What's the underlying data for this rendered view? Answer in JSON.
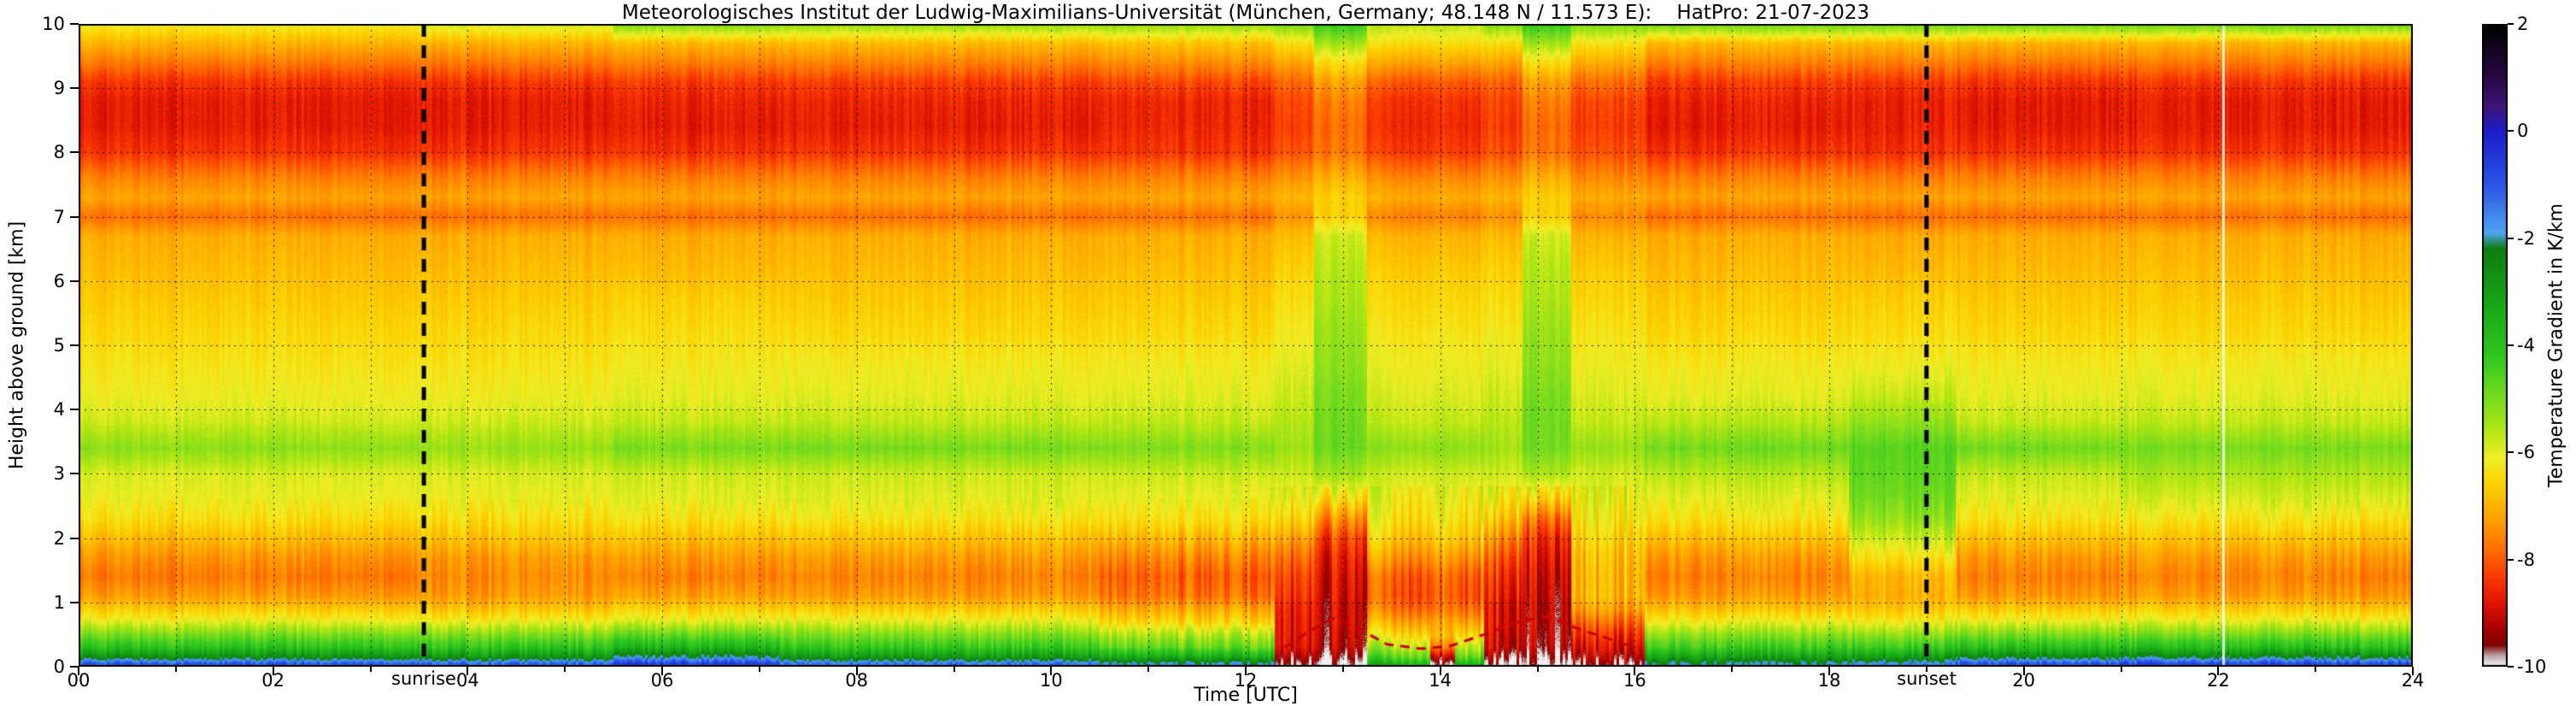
{
  "chart_data": {
    "type": "heatmap",
    "title": "Meteorologisches Institut der Ludwig-Maximilians-Universität (München, Germany; 48.148 N / 11.573 E):    HatPro: 21-07-2023",
    "xlabel": "Time [UTC]",
    "ylabel": "Height above ground [km]",
    "xlim": [
      0,
      24
    ],
    "ylim": [
      0,
      10
    ],
    "x_unit": "hours UTC",
    "y_unit": "km",
    "value_unit": "K/km",
    "grid": "dotted",
    "x_ticks": [
      "00",
      "02",
      "04",
      "06",
      "08",
      "10",
      "12",
      "14",
      "16",
      "18",
      "20",
      "22",
      "24"
    ],
    "y_ticks": [
      "0",
      "1",
      "2",
      "3",
      "4",
      "5",
      "6",
      "7",
      "8",
      "9",
      "10"
    ],
    "colorbar": {
      "label": "Temperature Gradient in K/km",
      "ticks": [
        "2",
        "0",
        "-2",
        "-4",
        "-6",
        "-8",
        "-10"
      ],
      "vmax": 2,
      "vmin": -10,
      "stops": [
        {
          "v": 2.0,
          "c": "#000000"
        },
        {
          "v": 1.1,
          "c": "#24073c"
        },
        {
          "v": 0.45,
          "c": "#3f1478"
        },
        {
          "v": 0.0,
          "c": "#1c1cc8"
        },
        {
          "v": -1.0,
          "c": "#2a55e6"
        },
        {
          "v": -1.9,
          "c": "#4fa3f0"
        },
        {
          "v": -2.2,
          "c": "#0e7d0e"
        },
        {
          "v": -3.2,
          "c": "#17a517"
        },
        {
          "v": -4.2,
          "c": "#2fc81e"
        },
        {
          "v": -5.0,
          "c": "#78dc1e"
        },
        {
          "v": -5.6,
          "c": "#b4e614"
        },
        {
          "v": -6.1,
          "c": "#f0ee28"
        },
        {
          "v": -6.6,
          "c": "#fcd200"
        },
        {
          "v": -7.2,
          "c": "#ffa500"
        },
        {
          "v": -7.8,
          "c": "#ff7000"
        },
        {
          "v": -8.3,
          "c": "#fa3c00"
        },
        {
          "v": -8.8,
          "c": "#e01400"
        },
        {
          "v": -9.3,
          "c": "#a80000"
        },
        {
          "v": -9.6,
          "c": "#800404"
        },
        {
          "v": -9.78,
          "c": "#b89898"
        },
        {
          "v": -9.9,
          "c": "#dcd4d4"
        },
        {
          "v": -10.0,
          "c": "#f0f0f0"
        }
      ]
    },
    "annotations": {
      "sunrise": {
        "t": 3.55,
        "label": "sunrise"
      },
      "sunset": {
        "t": 19.0,
        "label": "sunset"
      }
    },
    "heights": [
      0.05,
      0.15,
      0.3,
      0.5,
      0.7,
      0.9,
      1.1,
      1.4,
      1.7,
      2.0,
      2.3,
      2.6,
      3.0,
      3.4,
      3.8,
      4.2,
      4.7,
      5.2,
      5.7,
      6.2,
      6.7,
      7.0,
      7.3,
      7.6,
      8.0,
      8.4,
      8.8,
      9.1,
      9.4,
      9.7,
      10.0
    ],
    "time_slices": [
      {
        "name": "night1",
        "t": [
          0,
          3.5
        ],
        "values": [
          -1.0,
          -2.6,
          -4.0,
          -5.0,
          -6.0,
          -6.7,
          -7.3,
          -7.7,
          -7.4,
          -6.9,
          -6.4,
          -6.1,
          -5.9,
          -5.2,
          -5.8,
          -6.1,
          -6.3,
          -6.5,
          -6.7,
          -6.9,
          -7.1,
          -7.8,
          -7.2,
          -7.6,
          -8.4,
          -8.7,
          -8.7,
          -8.4,
          -7.7,
          -7.0,
          -6.1
        ]
      },
      {
        "name": "dawn",
        "t": [
          3.5,
          5.5
        ],
        "values": [
          -1.2,
          -2.8,
          -4.1,
          -5.1,
          -6.1,
          -6.8,
          -7.3,
          -7.5,
          -7.3,
          -6.8,
          -6.4,
          -6.1,
          -5.9,
          -5.3,
          -5.8,
          -6.1,
          -6.3,
          -6.5,
          -6.7,
          -6.9,
          -7.1,
          -7.8,
          -7.2,
          -7.6,
          -8.4,
          -8.7,
          -8.7,
          -8.4,
          -7.7,
          -7.0,
          -5.8
        ]
      },
      {
        "name": "morning-blue-ground",
        "t": [
          5.5,
          7.2
        ],
        "values": [
          -0.6,
          -2.0,
          -3.6,
          -4.8,
          -5.9,
          -6.6,
          -7.2,
          -7.6,
          -7.3,
          -6.8,
          -6.3,
          -6.0,
          -5.8,
          -5.0,
          -5.7,
          -6.0,
          -6.2,
          -6.4,
          -6.6,
          -6.9,
          -7.1,
          -7.8,
          -7.2,
          -7.6,
          -8.4,
          -8.7,
          -8.6,
          -8.3,
          -7.6,
          -6.9,
          -5.0
        ]
      },
      {
        "name": "morning",
        "t": [
          7.2,
          10.5
        ],
        "values": [
          -1.4,
          -2.9,
          -4.2,
          -5.1,
          -6.0,
          -6.7,
          -7.3,
          -7.6,
          -7.3,
          -6.8,
          -6.3,
          -6.0,
          -5.8,
          -5.0,
          -5.7,
          -6.0,
          -6.2,
          -6.5,
          -6.7,
          -6.9,
          -7.1,
          -7.8,
          -7.2,
          -7.6,
          -8.4,
          -8.7,
          -8.6,
          -8.3,
          -7.6,
          -6.9,
          -5.2
        ]
      },
      {
        "name": "pre-convective",
        "t": [
          10.5,
          12.3
        ],
        "values": [
          -2.0,
          -3.4,
          -4.8,
          -5.6,
          -6.6,
          -7.2,
          -7.8,
          -8.0,
          -7.6,
          -7.0,
          -6.4,
          -6.1,
          -5.8,
          -5.1,
          -5.7,
          -6.0,
          -6.2,
          -6.5,
          -6.7,
          -6.9,
          -7.1,
          -7.8,
          -7.2,
          -7.6,
          -8.4,
          -8.6,
          -8.6,
          -8.2,
          -7.5,
          -6.8,
          -5.2
        ]
      },
      {
        "name": "event1-onset",
        "t": [
          12.3,
          12.7
        ],
        "values": [
          -9.8,
          -9.4,
          -8.9,
          -8.8,
          -8.8,
          -8.7,
          -8.5,
          -8.3,
          -7.9,
          -7.3,
          -6.6,
          -6.2,
          -5.8,
          -5.4,
          -5.6,
          -5.8,
          -6.0,
          -6.2,
          -6.4,
          -6.6,
          -6.9,
          -7.4,
          -7.0,
          -7.4,
          -8.1,
          -8.3,
          -8.2,
          -7.9,
          -7.2,
          -6.4,
          -5.0
        ]
      },
      {
        "name": "event1-core",
        "t": [
          12.7,
          13.25
        ],
        "values": [
          -10.0,
          -9.6,
          -9.2,
          -9.1,
          -9.0,
          -9.0,
          -8.9,
          -8.8,
          -8.6,
          -8.2,
          -7.4,
          -6.4,
          -5.4,
          -4.8,
          -4.9,
          -5.0,
          -5.2,
          -5.3,
          -5.5,
          -5.6,
          -5.8,
          -6.6,
          -6.6,
          -7.0,
          -7.7,
          -7.8,
          -7.6,
          -7.2,
          -6.4,
          -5.4,
          -4.2
        ]
      },
      {
        "name": "between1",
        "t": [
          13.25,
          13.9
        ],
        "values": [
          -3.6,
          -4.6,
          -5.5,
          -6.4,
          -7.1,
          -7.7,
          -8.0,
          -7.9,
          -7.3,
          -6.7,
          -6.3,
          -6.1,
          -5.8,
          -5.2,
          -5.7,
          -5.9,
          -6.1,
          -6.3,
          -6.5,
          -6.7,
          -7.0,
          -7.6,
          -7.1,
          -7.5,
          -8.3,
          -8.5,
          -8.4,
          -8.0,
          -7.2,
          -6.4,
          -5.6
        ]
      },
      {
        "name": "gray-ground",
        "t": [
          13.9,
          14.15
        ],
        "values": [
          -9.9,
          -9.2,
          -7.8,
          -7.0,
          -7.3,
          -7.8,
          -8.0,
          -7.9,
          -7.3,
          -6.7,
          -6.3,
          -6.1,
          -5.8,
          -5.2,
          -5.7,
          -5.9,
          -6.1,
          -6.3,
          -6.5,
          -6.7,
          -7.0,
          -7.6,
          -7.1,
          -7.5,
          -8.3,
          -8.5,
          -8.4,
          -8.0,
          -7.2,
          -6.4,
          -5.6
        ]
      },
      {
        "name": "between2",
        "t": [
          14.15,
          14.45
        ],
        "values": [
          -3.6,
          -4.6,
          -5.5,
          -6.4,
          -7.1,
          -7.7,
          -8.0,
          -7.9,
          -7.3,
          -6.7,
          -6.3,
          -6.1,
          -5.8,
          -5.2,
          -5.7,
          -5.9,
          -6.1,
          -6.3,
          -6.5,
          -6.7,
          -7.0,
          -7.6,
          -7.1,
          -7.5,
          -8.3,
          -8.5,
          -8.4,
          -8.0,
          -7.2,
          -6.4,
          -5.6
        ]
      },
      {
        "name": "event2-onset",
        "t": [
          14.45,
          14.85
        ],
        "values": [
          -9.9,
          -9.5,
          -9.0,
          -8.9,
          -8.8,
          -8.8,
          -8.6,
          -8.4,
          -8.0,
          -7.4,
          -6.7,
          -6.2,
          -5.8,
          -5.4,
          -5.6,
          -5.8,
          -6.0,
          -6.2,
          -6.4,
          -6.6,
          -6.9,
          -7.4,
          -7.0,
          -7.4,
          -8.1,
          -8.3,
          -8.2,
          -7.9,
          -7.2,
          -6.4,
          -5.0
        ]
      },
      {
        "name": "event2-core",
        "t": [
          14.85,
          15.35
        ],
        "values": [
          -10.0,
          -9.7,
          -9.3,
          -9.2,
          -9.1,
          -9.1,
          -9.0,
          -8.9,
          -8.7,
          -8.4,
          -7.7,
          -6.6,
          -5.5,
          -4.9,
          -4.9,
          -5.0,
          -5.2,
          -5.3,
          -5.5,
          -5.6,
          -5.8,
          -6.6,
          -6.6,
          -7.0,
          -7.7,
          -7.8,
          -7.6,
          -7.2,
          -6.4,
          -5.4,
          -4.2
        ]
      },
      {
        "name": "event2-decay",
        "t": [
          15.35,
          16.1
        ],
        "values": [
          -9.6,
          -9.2,
          -8.8,
          -8.4,
          -7.8,
          -7.2,
          -6.9,
          -6.9,
          -6.8,
          -6.5,
          -6.2,
          -6.0,
          -5.8,
          -5.3,
          -5.7,
          -5.9,
          -6.1,
          -6.3,
          -6.5,
          -6.7,
          -7.0,
          -7.5,
          -7.1,
          -7.5,
          -8.1,
          -8.3,
          -8.2,
          -7.8,
          -7.1,
          -6.3,
          -5.0
        ]
      },
      {
        "name": "evening",
        "t": [
          16.1,
          18.2
        ],
        "values": [
          -2.0,
          -3.1,
          -4.3,
          -5.2,
          -6.1,
          -6.8,
          -7.3,
          -7.6,
          -7.3,
          -6.8,
          -6.3,
          -6.0,
          -5.6,
          -4.9,
          -5.6,
          -6.0,
          -6.2,
          -6.5,
          -6.7,
          -6.9,
          -7.1,
          -7.8,
          -7.2,
          -7.6,
          -8.4,
          -8.7,
          -8.6,
          -8.3,
          -7.6,
          -6.9,
          -4.8
        ]
      },
      {
        "name": "pre-sunset-green",
        "t": [
          18.2,
          19.3
        ],
        "values": [
          -1.6,
          -2.9,
          -4.2,
          -5.2,
          -6.1,
          -6.7,
          -7.0,
          -6.9,
          -6.3,
          -5.7,
          -5.2,
          -4.9,
          -4.7,
          -4.6,
          -5.2,
          -5.7,
          -6.1,
          -6.4,
          -6.6,
          -6.9,
          -7.1,
          -7.8,
          -7.2,
          -7.6,
          -8.4,
          -8.6,
          -8.6,
          -8.3,
          -7.6,
          -6.9,
          -4.8
        ]
      },
      {
        "name": "night2",
        "t": [
          19.3,
          21.0
        ],
        "values": [
          -0.9,
          -2.4,
          -3.9,
          -5.0,
          -6.0,
          -6.7,
          -7.3,
          -7.6,
          -7.3,
          -6.8,
          -6.3,
          -6.0,
          -5.7,
          -4.9,
          -5.7,
          -6.0,
          -6.2,
          -6.5,
          -6.7,
          -6.9,
          -7.1,
          -7.8,
          -7.2,
          -7.6,
          -8.4,
          -8.7,
          -8.7,
          -8.4,
          -7.7,
          -7.0,
          -4.8
        ]
      },
      {
        "name": "night3",
        "t": [
          21.0,
          24.0
        ],
        "values": [
          -0.8,
          -2.3,
          -3.9,
          -5.0,
          -6.0,
          -6.7,
          -7.3,
          -7.6,
          -7.3,
          -6.8,
          -6.3,
          -5.9,
          -5.5,
          -5.0,
          -5.7,
          -6.0,
          -6.2,
          -6.5,
          -6.7,
          -6.9,
          -7.1,
          -7.8,
          -7.2,
          -7.6,
          -8.4,
          -8.7,
          -8.7,
          -8.4,
          -7.7,
          -7.0,
          -4.8
        ]
      }
    ],
    "surface_contour": {
      "color": "#cc0000",
      "style": "dashed",
      "points": [
        [
          12.4,
          0.3
        ],
        [
          12.65,
          0.55
        ],
        [
          12.9,
          0.75
        ],
        [
          13.15,
          0.6
        ],
        [
          13.45,
          0.35
        ],
        [
          13.8,
          0.28
        ],
        [
          14.1,
          0.32
        ],
        [
          14.45,
          0.5
        ],
        [
          14.8,
          0.7
        ],
        [
          15.1,
          0.78
        ],
        [
          15.4,
          0.6
        ],
        [
          15.7,
          0.45
        ],
        [
          16.0,
          0.3
        ]
      ]
    },
    "missing_data_line_t": 22.05
  }
}
